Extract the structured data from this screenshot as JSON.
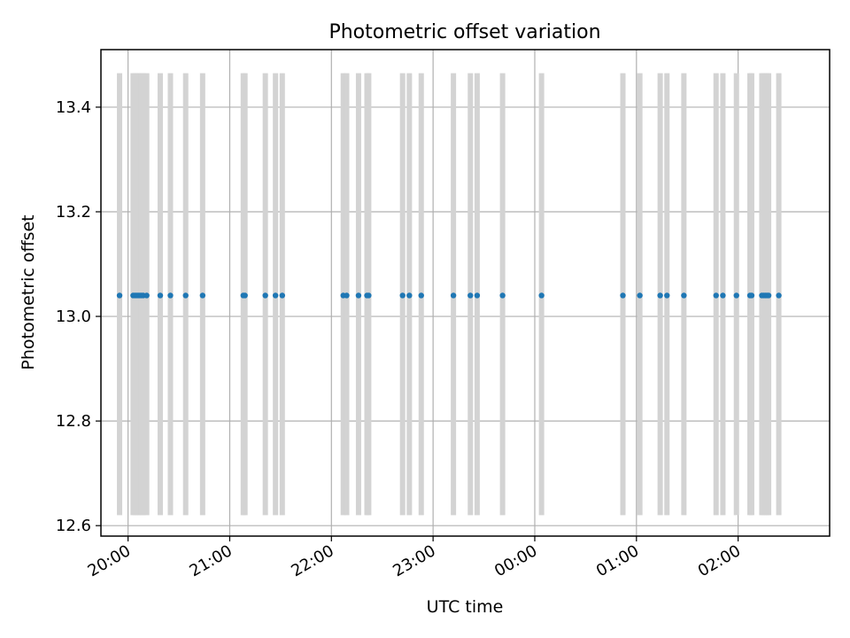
{
  "chart_data": {
    "type": "scatter",
    "title": "Photometric offset variation",
    "xlabel": "UTC time",
    "ylabel": "Photometric offset",
    "x_range": [
      "19:44",
      "02:54"
    ],
    "ylim": [
      12.58,
      13.51
    ],
    "grid": true,
    "x_ticks": [
      "20:00",
      "21:00",
      "22:00",
      "23:00",
      "00:00",
      "01:00",
      "02:00"
    ],
    "y_ticks": [
      12.6,
      12.8,
      13.0,
      13.2,
      13.4
    ],
    "y_tick_labels": [
      "12.6",
      "12.8",
      "13.0",
      "13.2",
      "13.4"
    ],
    "point_color": "#1f77b4",
    "bar_color": "#d3d3d3",
    "error_bars": {
      "lower": 12.62,
      "upper": 13.465
    },
    "series": [
      {
        "times": [
          "19:55",
          "20:03",
          "20:04",
          "20:05",
          "20:06",
          "20:07",
          "20:08",
          "20:09",
          "20:11",
          "20:19",
          "20:25",
          "20:34",
          "20:44",
          "21:08",
          "21:09",
          "21:21",
          "21:27",
          "21:31",
          "22:07",
          "22:09",
          "22:16",
          "22:21",
          "22:22",
          "22:42",
          "22:46",
          "22:53",
          "23:12",
          "23:22",
          "23:26",
          "23:41",
          "00:04",
          "00:52",
          "01:02",
          "01:14",
          "01:18",
          "01:28",
          "01:47",
          "01:51",
          "01:59",
          "02:07",
          "02:08",
          "02:14",
          "02:15",
          "02:16",
          "02:17",
          "02:18",
          "02:24"
        ],
        "values": [
          13.04,
          13.04,
          13.04,
          13.04,
          13.04,
          13.04,
          13.04,
          13.04,
          13.04,
          13.04,
          13.04,
          13.04,
          13.04,
          13.04,
          13.04,
          13.04,
          13.04,
          13.04,
          13.04,
          13.04,
          13.04,
          13.04,
          13.04,
          13.04,
          13.04,
          13.04,
          13.04,
          13.04,
          13.04,
          13.04,
          13.04,
          13.04,
          13.04,
          13.04,
          13.04,
          13.04,
          13.04,
          13.04,
          13.04,
          13.04,
          13.04,
          13.04,
          13.04,
          13.04,
          13.04,
          13.04,
          13.04
        ]
      }
    ]
  }
}
